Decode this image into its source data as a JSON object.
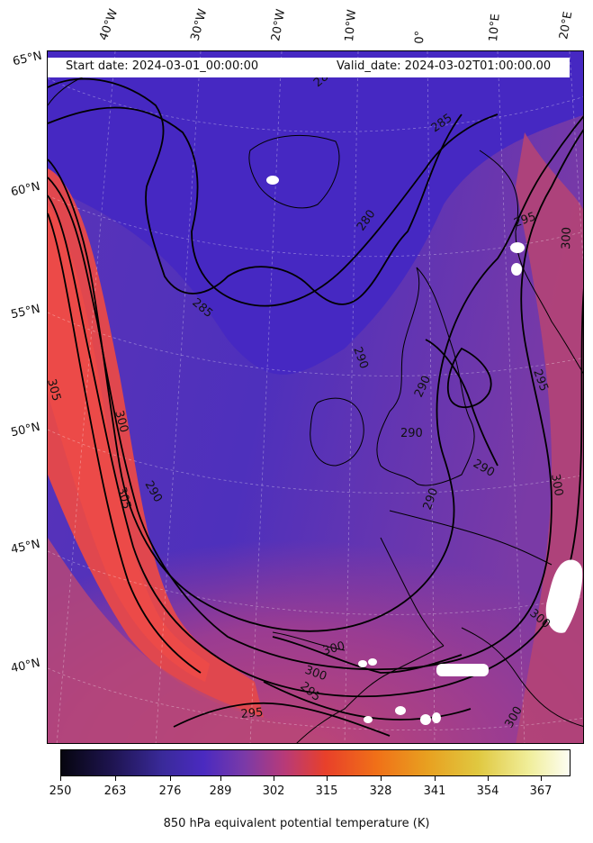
{
  "header": {
    "start_date": "Start date: 2024-03-01_00:00:00",
    "valid_date": "Valid_date: 2024-03-02T01:00:00.00"
  },
  "longitude_labels": [
    "40°W",
    "30°W",
    "20°W",
    "10°W",
    "0°",
    "10°E",
    "20°E"
  ],
  "latitude_labels": [
    "65°N",
    "60°N",
    "55°N",
    "50°N",
    "45°N",
    "40°N"
  ],
  "contour_labels": [
    {
      "text": "285"
    },
    {
      "text": "280"
    },
    {
      "text": "285"
    },
    {
      "text": "285"
    },
    {
      "text": "295"
    },
    {
      "text": "300"
    },
    {
      "text": "305"
    },
    {
      "text": "300"
    },
    {
      "text": "305"
    },
    {
      "text": "290"
    },
    {
      "text": "290"
    },
    {
      "text": "290"
    },
    {
      "text": "290"
    },
    {
      "text": "290"
    },
    {
      "text": "290"
    },
    {
      "text": "295"
    },
    {
      "text": "300"
    },
    {
      "text": "300"
    },
    {
      "text": "300"
    },
    {
      "text": "300"
    },
    {
      "text": "295"
    },
    {
      "text": "295"
    },
    {
      "text": "300"
    }
  ],
  "colorbar": {
    "ticks": [
      "250",
      "263",
      "276",
      "289",
      "302",
      "315",
      "328",
      "341",
      "354",
      "367"
    ],
    "label": "850 hPa equivalent potential temperature (K)",
    "colormap": "CMRmap"
  },
  "colors": {
    "cold_air": "#4a2ec0",
    "warm_air": "#e84848",
    "mid_air": "#8a3aa0",
    "contour": "#000000",
    "coastline": "#000000"
  }
}
